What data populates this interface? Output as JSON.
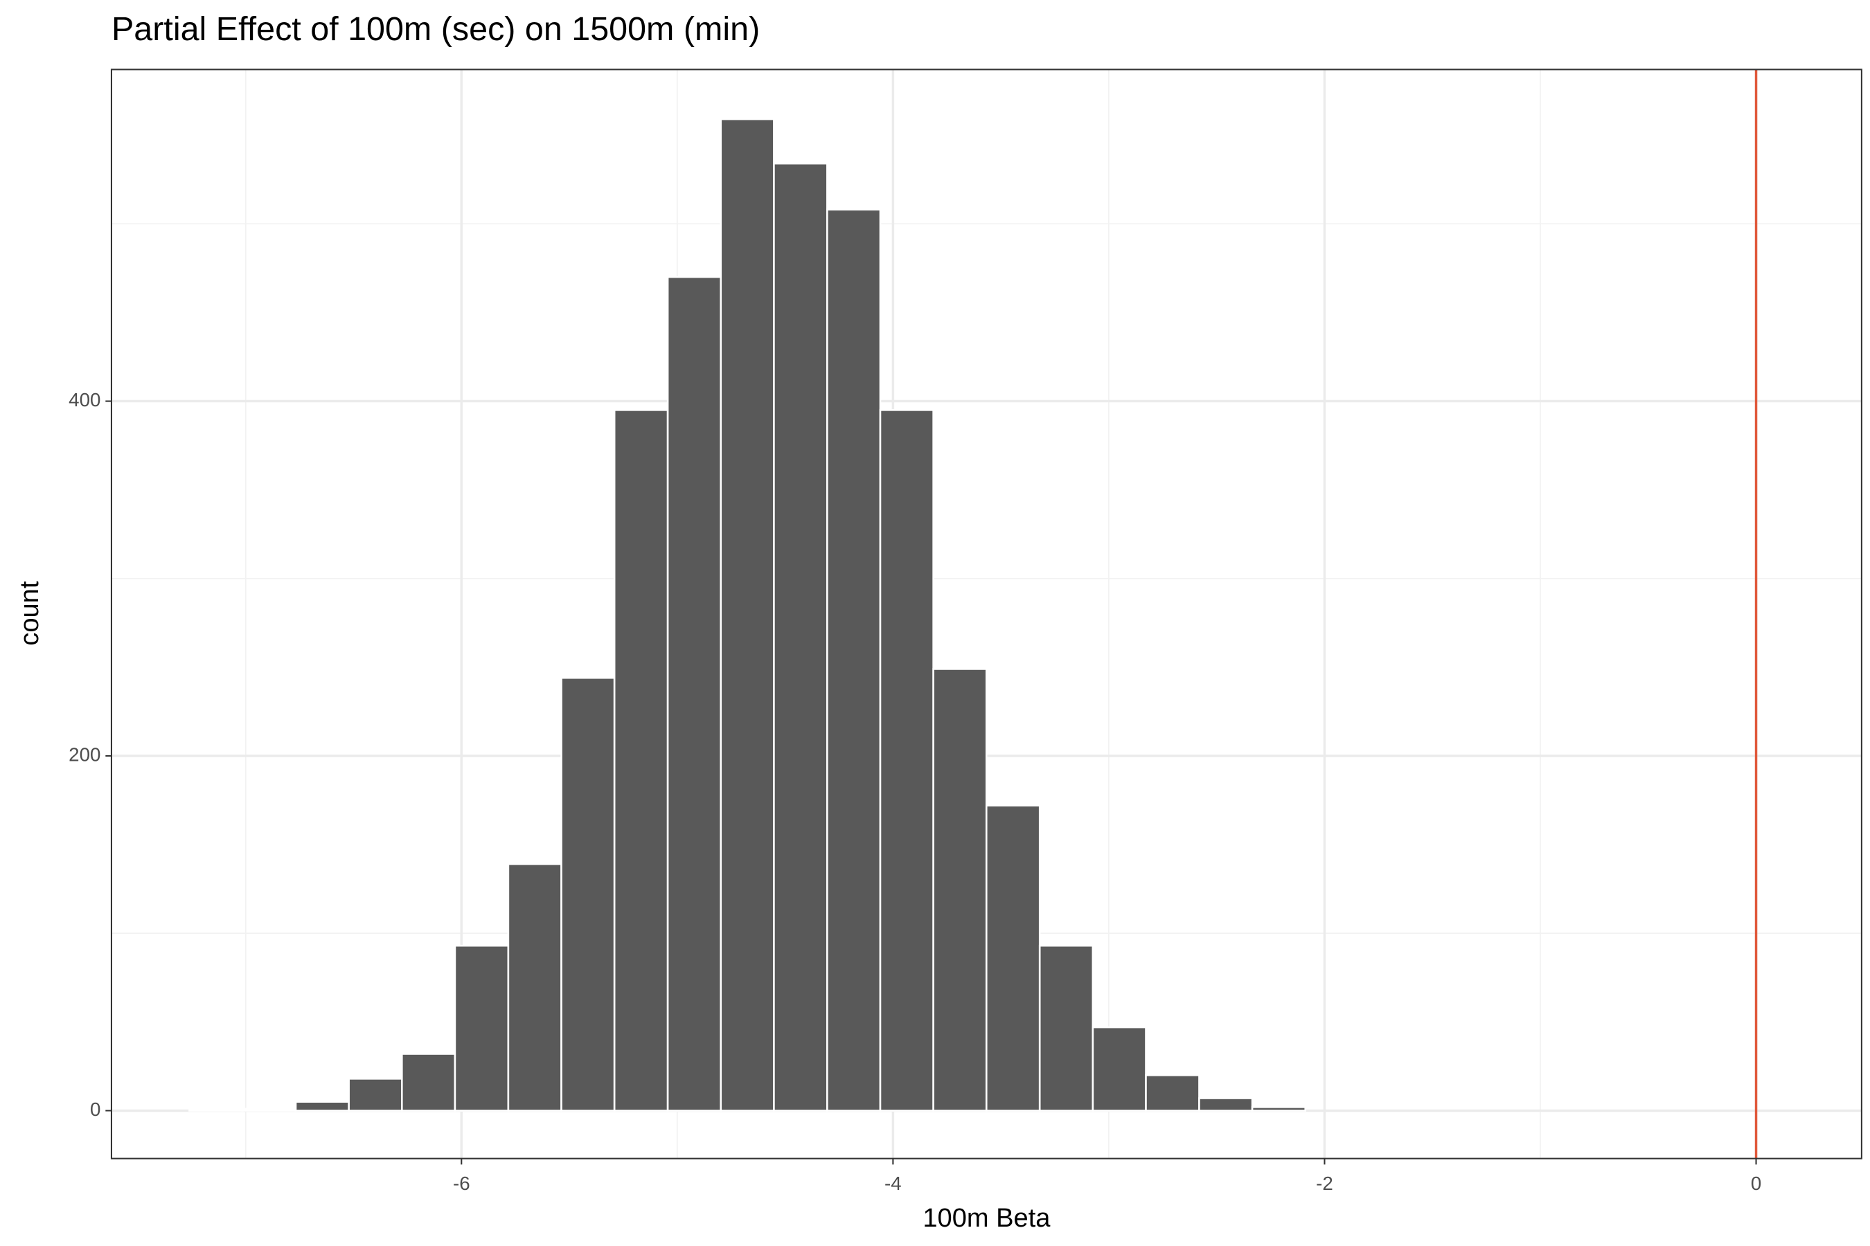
{
  "chart_data": {
    "type": "histogram",
    "title": "Partial Effect of 100m (sec) on 1500m (min)",
    "xlabel": "100m Beta",
    "ylabel": "count",
    "bins": [
      -7.261,
      -7.015,
      -6.768,
      -6.522,
      -6.276,
      -6.03,
      -5.783,
      -5.537,
      -5.291,
      -5.044,
      -4.798,
      -4.552,
      -4.305,
      -4.059,
      -3.813,
      -3.567,
      -3.32,
      -3.074,
      -2.828,
      -2.581,
      -2.335,
      -2.089,
      -1.842,
      -1.596,
      -1.35,
      -1.104,
      -0.857,
      -0.611,
      -0.365,
      -0.118,
      0.128
    ],
    "counts": [
      1,
      1,
      5,
      18,
      32,
      93,
      139,
      244,
      395,
      470,
      559,
      534,
      508,
      395,
      249,
      172,
      93,
      47,
      20,
      7,
      2,
      0,
      0,
      0,
      0,
      0,
      0,
      0,
      0,
      0
    ],
    "color": "#595959",
    "xlim": [
      -7.622,
      0.489
    ],
    "ylim": [
      -27,
      587
    ],
    "xticks": [
      -6,
      -4,
      -2,
      0
    ],
    "yticks": [
      0,
      200,
      400
    ],
    "xminor": [
      -7,
      -5,
      -3,
      -1
    ],
    "yminor": [
      100,
      300,
      500
    ],
    "grid": true,
    "vline": {
      "x": 0,
      "color": "#e0593b"
    }
  }
}
